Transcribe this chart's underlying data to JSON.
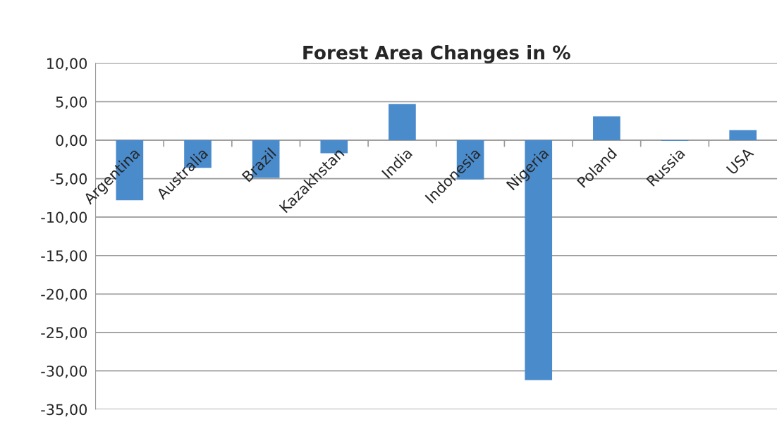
{
  "chart_data": {
    "type": "bar",
    "title": "Forest Area Changes in %",
    "categories": [
      "Argentina",
      "Australia",
      "Brazil",
      "Kazakhstan",
      "India",
      "Indonesia",
      "Nigeria",
      "Poland",
      "Russia",
      "USA"
    ],
    "values": [
      -7.8,
      -3.6,
      -4.9,
      -1.7,
      4.7,
      -5.1,
      -31.2,
      3.1,
      -0.1,
      1.3
    ],
    "color": "#4a8bcc",
    "ylim": [
      -35,
      10
    ],
    "yticks": [
      {
        "value": -35,
        "label": "-35,00"
      },
      {
        "value": -30,
        "label": "-30,00"
      },
      {
        "value": -25,
        "label": "-25,00"
      },
      {
        "value": -20,
        "label": "-20,00"
      },
      {
        "value": -15,
        "label": "-15,00"
      },
      {
        "value": -10,
        "label": "-10,00"
      },
      {
        "value": -5,
        "label": "-5,00"
      },
      {
        "value": 0,
        "label": "0,00"
      },
      {
        "value": 5,
        "label": "5,00"
      },
      {
        "value": 10,
        "label": "10,00"
      }
    ],
    "grid": "y"
  }
}
